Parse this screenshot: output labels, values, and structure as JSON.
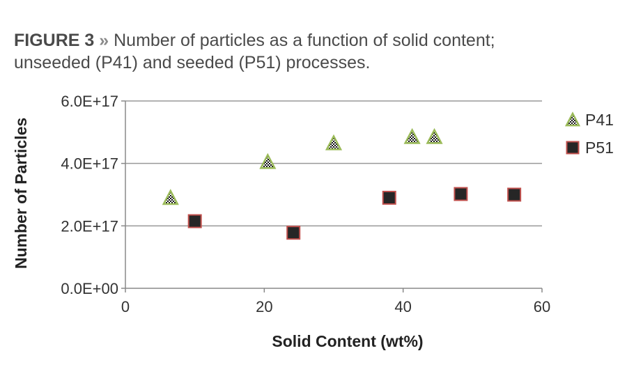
{
  "caption": {
    "label": "FIGURE 3",
    "separator": "»",
    "line1": "Number of particles as a function of solid content;",
    "line2": "unseeded (P41) and seeded (P51) processes."
  },
  "chart_data": {
    "type": "scatter",
    "title": "",
    "xlabel": "Solid Content (wt%)",
    "ylabel": "Number of Particles",
    "xlim": [
      0,
      60
    ],
    "ylim": [
      0,
      6e+17
    ],
    "xticks": [
      0,
      20,
      40,
      60
    ],
    "xtick_labels": [
      "0",
      "20",
      "40",
      "60"
    ],
    "yticks": [
      0,
      2e+17,
      4e+17,
      6e+17
    ],
    "ytick_labels": [
      "0.0E+00",
      "2.0E+17",
      "4.0E+17",
      "6.0E+17"
    ],
    "grid": "horizontal",
    "legend_position": "right",
    "series": [
      {
        "name": "P41",
        "marker": "triangle-checkered",
        "edge_color": "#9bbb59",
        "points": [
          {
            "x": 6.5,
            "y": 2.9e+17
          },
          {
            "x": 20.5,
            "y": 4.05e+17
          },
          {
            "x": 30.0,
            "y": 4.65e+17
          },
          {
            "x": 41.3,
            "y": 4.85e+17
          },
          {
            "x": 44.5,
            "y": 4.85e+17
          }
        ]
      },
      {
        "name": "P51",
        "marker": "square",
        "fill_color": "#262626",
        "edge_color": "#c0504d",
        "points": [
          {
            "x": 10.0,
            "y": 2.15e+17
          },
          {
            "x": 24.2,
            "y": 1.78e+17
          },
          {
            "x": 38.0,
            "y": 2.9e+17
          },
          {
            "x": 48.3,
            "y": 3.02e+17
          },
          {
            "x": 56.0,
            "y": 3e+17
          }
        ]
      }
    ]
  }
}
